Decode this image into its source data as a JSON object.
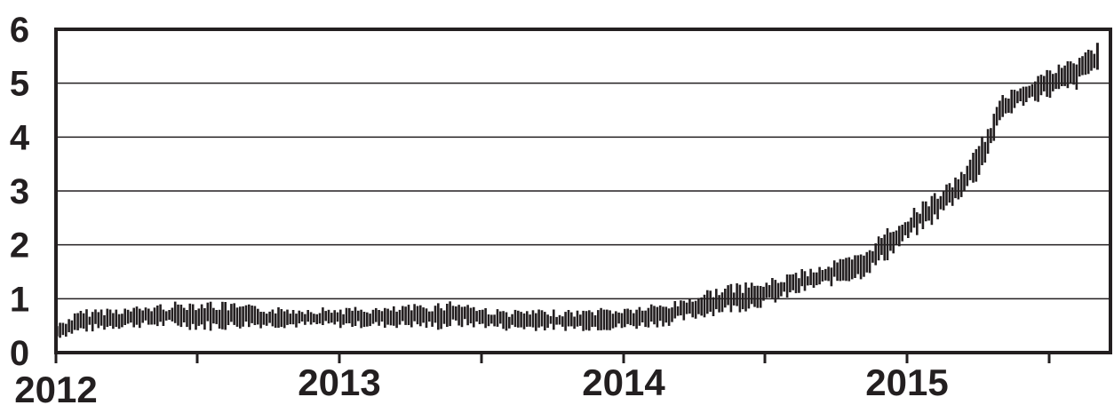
{
  "chart_data": {
    "type": "bar",
    "subtype": "range-bar (high-low per interval)",
    "title": "",
    "xlabel": "",
    "ylabel": "",
    "x_axis": {
      "type": "time",
      "range": [
        "2012-01",
        "2015-09"
      ],
      "tick_labels": [
        "2012",
        "2013",
        "2014",
        "2015"
      ]
    },
    "y_axis": {
      "range": [
        0,
        6
      ],
      "tick_labels": [
        "0",
        "1",
        "2",
        "3",
        "4",
        "5",
        "6"
      ]
    },
    "grid": "horizontal",
    "legend": "none",
    "colors": {
      "bars": "#231f20",
      "grid": "#231f20",
      "background": "#ffffff"
    },
    "series": [
      {
        "description": "monthly low/high range (approximate)",
        "x": [
          "2012-01",
          "2012-02",
          "2012-03",
          "2012-04",
          "2012-05",
          "2012-06",
          "2012-07",
          "2012-08",
          "2012-09",
          "2012-10",
          "2012-11",
          "2012-12",
          "2013-01",
          "2013-02",
          "2013-03",
          "2013-04",
          "2013-05",
          "2013-06",
          "2013-07",
          "2013-08",
          "2013-09",
          "2013-10",
          "2013-11",
          "2013-12",
          "2014-01",
          "2014-02",
          "2014-03",
          "2014-04",
          "2014-05",
          "2014-06",
          "2014-07",
          "2014-08",
          "2014-09",
          "2014-10",
          "2014-11",
          "2014-12",
          "2015-01",
          "2015-02",
          "2015-03",
          "2015-04",
          "2015-05",
          "2015-06",
          "2015-07",
          "2015-08",
          "2015-09"
        ],
        "low": [
          0.25,
          0.35,
          0.4,
          0.45,
          0.45,
          0.45,
          0.4,
          0.4,
          0.45,
          0.45,
          0.45,
          0.45,
          0.45,
          0.45,
          0.45,
          0.45,
          0.4,
          0.45,
          0.45,
          0.4,
          0.4,
          0.4,
          0.4,
          0.4,
          0.4,
          0.45,
          0.5,
          0.6,
          0.7,
          0.75,
          0.85,
          1.0,
          1.15,
          1.25,
          1.35,
          1.65,
          2.05,
          2.35,
          2.75,
          3.2,
          4.3,
          4.6,
          4.7,
          4.8,
          5.25
        ],
        "high": [
          0.55,
          0.8,
          0.85,
          0.85,
          0.9,
          0.95,
          1.0,
          0.95,
          0.9,
          0.85,
          0.85,
          0.85,
          0.85,
          0.85,
          0.85,
          0.9,
          0.95,
          1.0,
          0.85,
          0.8,
          0.8,
          0.8,
          0.8,
          0.85,
          0.85,
          0.9,
          0.95,
          1.1,
          1.25,
          1.3,
          1.35,
          1.5,
          1.6,
          1.75,
          1.85,
          2.3,
          2.6,
          2.95,
          3.25,
          3.9,
          4.8,
          5.1,
          5.3,
          5.5,
          5.75
        ]
      }
    ]
  }
}
